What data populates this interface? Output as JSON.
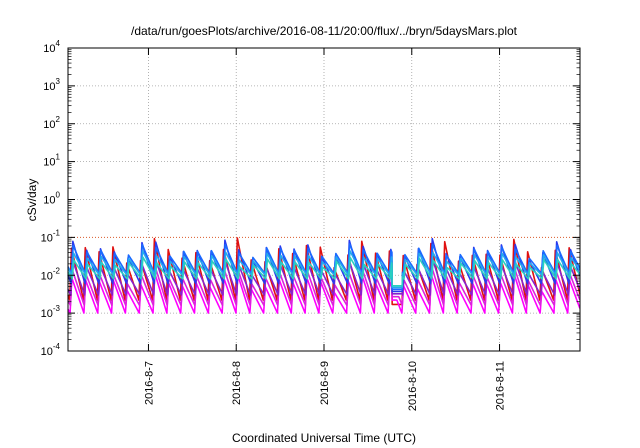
{
  "chart_data": {
    "type": "line",
    "title": "/data/run/goesPlots/archive/2016-08-11/20:00/flux/../bryn/5daysMars.plot",
    "xlabel": "Coordinated Universal Time (UTC)",
    "ylabel": "cSv/day",
    "yscale": "log",
    "ylim": [
      0.0001,
      10000
    ],
    "xlim": [
      "2016-08-06 02:00",
      "2016-08-11 22:00"
    ],
    "grid": true,
    "legend": "none",
    "y_ticks": [
      {
        "base": "10",
        "exp": "4"
      },
      {
        "base": "10",
        "exp": "3"
      },
      {
        "base": "10",
        "exp": "2"
      },
      {
        "base": "10",
        "exp": "1"
      },
      {
        "base": "10",
        "exp": "0"
      },
      {
        "base": "10",
        "exp": "-1"
      },
      {
        "base": "10",
        "exp": "-2"
      },
      {
        "base": "10",
        "exp": "-3"
      },
      {
        "base": "10",
        "exp": "-4"
      }
    ],
    "x_ticks": [
      "2016-8-7",
      "2016-8-8",
      "2016-8-9",
      "2016-8-10",
      "2016-8-11"
    ],
    "reference_line": {
      "y": 0.1,
      "color": "#e06030"
    },
    "cycle_days": 0.1575,
    "peak_value": 0.115,
    "series": [
      {
        "color": "#e01010",
        "peak": 0.105,
        "trough": 0.0022
      },
      {
        "color": "#ff00ff",
        "peak": 0.012,
        "trough": 0.001
      },
      {
        "color": "#dd22dd",
        "peak": 0.018,
        "trough": 0.0016
      },
      {
        "color": "#8822cc",
        "peak": 0.03,
        "trough": 0.003
      },
      {
        "color": "#2a3aee",
        "peak": 0.095,
        "trough": 0.006
      },
      {
        "color": "#1a6aff",
        "peak": 0.07,
        "trough": 0.011
      },
      {
        "color": "#22aaee",
        "peak": 0.045,
        "trough": 0.01
      },
      {
        "color": "#2ad0c0",
        "peak": 0.03,
        "trough": 0.008
      }
    ],
    "dips": [
      {
        "date": "2016-08-09 20:00",
        "value": 0.0017
      }
    ]
  }
}
